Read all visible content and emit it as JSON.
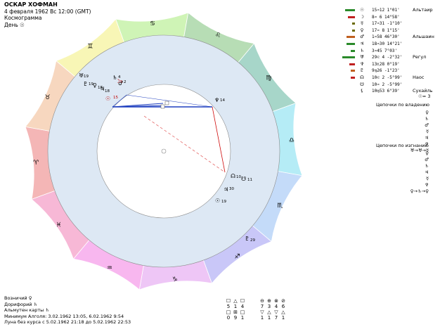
{
  "header": {
    "name": "ОСКАР ХОФМАН",
    "date_line": "4 февраля 1962  Вс  12:00 (GMT)",
    "chart_type": "Космограмма",
    "day_label": "День ☉"
  },
  "zodiac_signs": [
    {
      "glyph": "♈",
      "color": "#f4b6b6"
    },
    {
      "glyph": "♉",
      "color": "#f7d7bf"
    },
    {
      "glyph": "♊",
      "color": "#f8f6b6"
    },
    {
      "glyph": "♋",
      "color": "#cff4b6"
    },
    {
      "glyph": "♌",
      "color": "#b7ddb5"
    },
    {
      "glyph": "♍",
      "color": "#a7d6c9"
    },
    {
      "glyph": "♎",
      "color": "#b5ecf6"
    },
    {
      "glyph": "♏",
      "color": "#c4dbf9"
    },
    {
      "glyph": "♐",
      "color": "#c9c7f8"
    },
    {
      "glyph": "♑",
      "color": "#eec6f6"
    },
    {
      "glyph": "♒",
      "color": "#f8b7ef"
    },
    {
      "glyph": "♓",
      "color": "#f7b8d6"
    }
  ],
  "chart_planets": [
    {
      "glyph": "♅",
      "deg": "19"
    },
    {
      "glyph": "♇",
      "deg": "19"
    },
    {
      "glyph": "♆",
      "deg": "14"
    },
    {
      "glyph": "☽",
      "deg": "9"
    },
    {
      "glyph": "♂",
      "deg": "2"
    },
    {
      "glyph": "♄",
      "deg": "4"
    },
    {
      "glyph": "☉",
      "deg": "15"
    },
    {
      "glyph": "♀",
      "deg": "18"
    },
    {
      "glyph": "♃",
      "deg": "18"
    },
    {
      "glyph": "☊",
      "deg": "10"
    },
    {
      "glyph": "☋",
      "deg": "11"
    },
    {
      "glyph": "♃",
      "deg": "30"
    },
    {
      "glyph": "☉",
      "deg": "19"
    },
    {
      "glyph": "♇",
      "deg": "29"
    }
  ],
  "planet_list": [
    {
      "bar_color": "#2a8a2a",
      "bar_width": 14,
      "symbol": "☉",
      "pos": "15♒12   1°01'",
      "star": "Альтаир"
    },
    {
      "bar_color": "#c02020",
      "bar_width": 10,
      "symbol": "☽",
      "pos": " 8♒ 6  14°58'",
      "star": ""
    },
    {
      "bar_color": "#6a6a00",
      "bar_width": 4,
      "symbol": "☿",
      "pos": "17♒31  -1°10'",
      "star": ""
    },
    {
      "bar_color": "#6a6a00",
      "bar_width": 4,
      "symbol": "♀",
      "pos": "17♒ 8   1°15'",
      "star": ""
    },
    {
      "bar_color": "#c06020",
      "bar_width": 12,
      "symbol": "♂",
      "pos": " 1♒58  46°30'",
      "star": "Альшаин"
    },
    {
      "bar_color": "#2a8a2a",
      "bar_width": 12,
      "symbol": "♃",
      "pos": "18♒30  14°21'",
      "star": ""
    },
    {
      "bar_color": "#2a8a2a",
      "bar_width": 6,
      "symbol": "♄",
      "pos": " 3♒45   7°03'",
      "star": ""
    },
    {
      "bar_color": "#2a8a2a",
      "bar_width": 18,
      "symbol": "♅",
      "pos": "29♌ 4  -2°32'",
      "star": "Регул"
    },
    {
      "bar_color": "#c02020",
      "bar_width": 8,
      "symbol": "♆",
      "pos": "13♏28   0°19'",
      "star": ""
    },
    {
      "bar_color": "#c06020",
      "bar_width": 6,
      "symbol": "♇",
      "pos": " 9♍26  -1°23'",
      "star": ""
    },
    {
      "bar_color": "#c02020",
      "bar_width": 6,
      "symbol": "☊",
      "pos": "10♌ 2  -5°99'",
      "star": "Наос"
    },
    {
      "bar_color": "#2a8a2a",
      "bar_width": 0,
      "symbol": "☋",
      "pos": "10♒ 2  -5°99'",
      "star": ""
    },
    {
      "bar_color": "#2a8a2a",
      "bar_width": 0,
      "symbol": "⚸",
      "pos": "10♍53   6°39'",
      "star": "Сухайль"
    }
  ],
  "right_panel": {
    "sun_score": "☉= 3",
    "rulership_title": "Цепочки по владению",
    "rulership_chains": [
      "♀",
      "♄",
      "♂",
      "☿",
      "♃",
      "♆",
      "♅→♅→☿"
    ],
    "exile_title": "Цепочки по изгнанию",
    "exile_chains": [
      "♀",
      "♂",
      "♄",
      "♃",
      "☿",
      "♆",
      "♀→♄→♀"
    ]
  },
  "bottom": {
    "line1": "Возничий ♀",
    "line2": "Дорифорий ♄",
    "line3": "Альмутен карты ♄",
    "line4": "Минимум Алголя: 3.02.1962 13:05,  6.02.1962  9:54",
    "line5": "Луна без курса с 5.02.1962 21:18 до 5.02.1962 22:53"
  },
  "aspect_grid_left": {
    "symbols": [
      "☐",
      "△",
      "☐"
    ],
    "top": [
      "5",
      "1",
      "4"
    ],
    "symbols2": [
      "□",
      "⊞",
      "□"
    ],
    "bottom": [
      "0",
      "9",
      "1"
    ]
  },
  "aspect_grid_right": {
    "symbols": [
      "⊖",
      "⊕",
      "⊗",
      "⊘"
    ],
    "top": [
      "7",
      "3",
      "4",
      "6"
    ],
    "symbols2": [
      "▽",
      "△",
      "▽",
      "△"
    ],
    "bottom": [
      "1",
      "1",
      "7",
      "1"
    ]
  }
}
